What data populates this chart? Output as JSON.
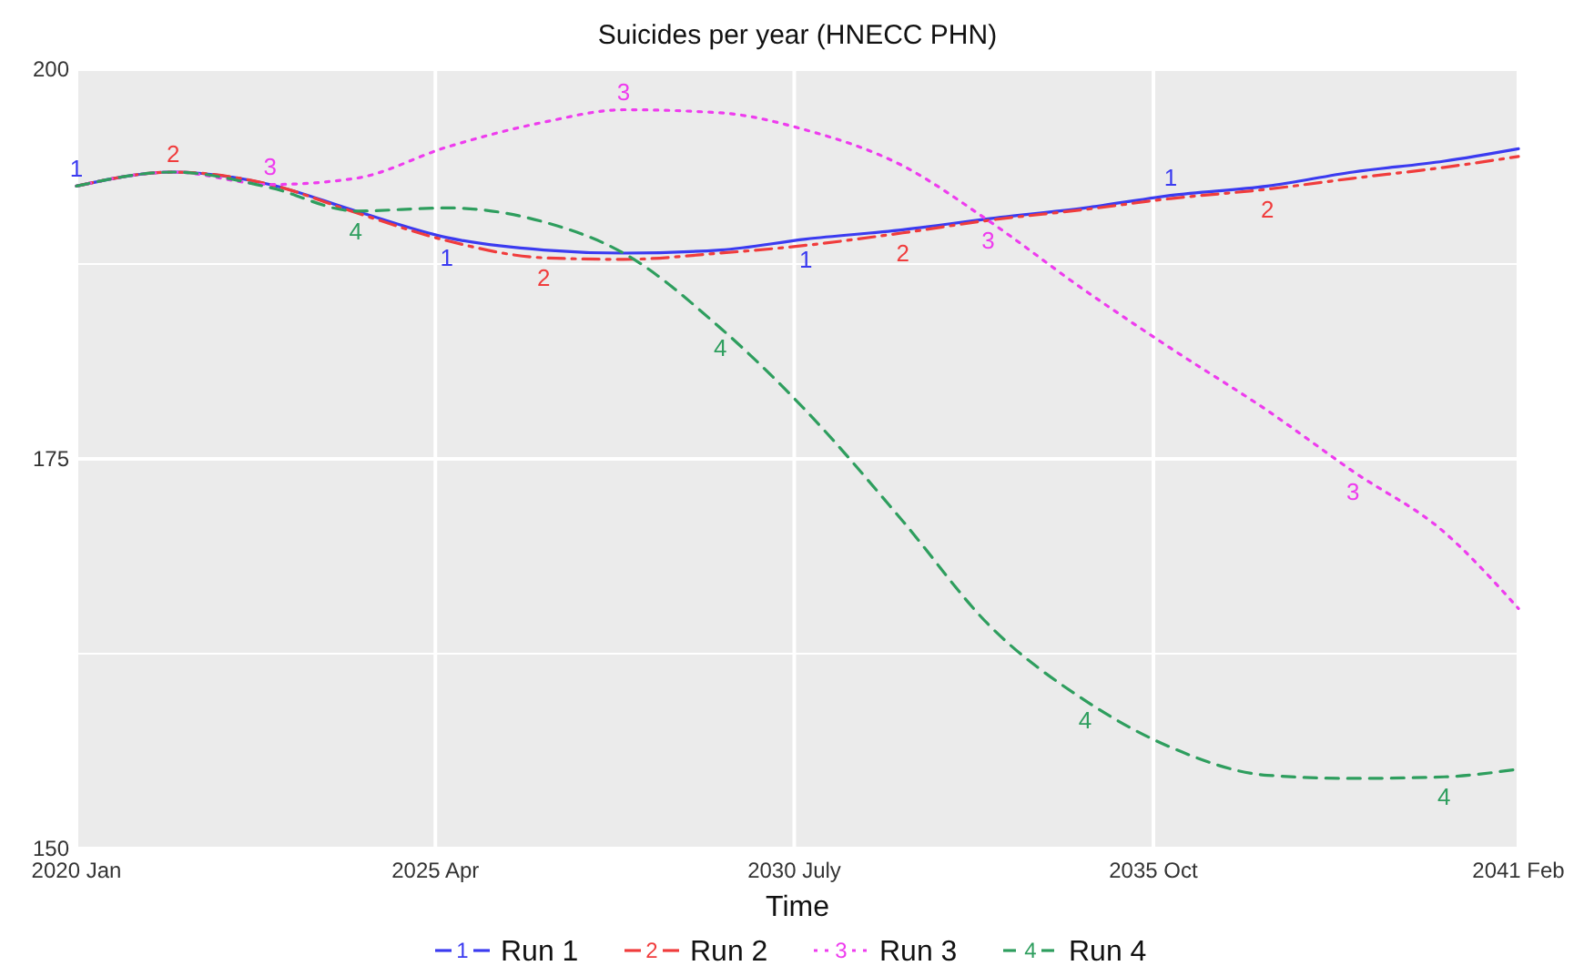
{
  "chart_data": {
    "type": "line",
    "title": "Suicides per year (HNECC PHN)",
    "xlabel": "Time",
    "x": [
      "2020-01",
      "2021-06",
      "2022-11",
      "2024-02",
      "2025-06",
      "2026-11",
      "2028-01",
      "2029-06",
      "2030-09",
      "2032-02",
      "2033-05",
      "2034-10",
      "2036-01",
      "2037-06",
      "2038-09",
      "2040-01",
      "2041-02"
    ],
    "xlim": [
      "2020-01",
      "2041-02"
    ],
    "xticks": [
      {
        "value": "2020-01",
        "label": "2020 Jan"
      },
      {
        "value": "2025-04",
        "label": "2025 Apr"
      },
      {
        "value": "2030-07",
        "label": "2030 July"
      },
      {
        "value": "2035-10",
        "label": "2035 Oct"
      },
      {
        "value": "2041-02",
        "label": "2041 Feb"
      }
    ],
    "ylim": [
      150,
      200
    ],
    "yticks": [
      150,
      {
        "value": 162.5,
        "label": null
      },
      175,
      {
        "value": 187.5,
        "label": null
      },
      200
    ],
    "grid": true,
    "legend": "bottom",
    "series": [
      {
        "name": "Run 1",
        "color": "#3b3bf0",
        "line_style": "solid",
        "values": [
          192.5,
          193.4,
          192.6,
          190.9,
          189.2,
          188.4,
          188.2,
          188.4,
          189.1,
          189.7,
          190.4,
          191.1,
          191.9,
          192.5,
          193.4,
          194.1,
          194.9
        ]
      },
      {
        "name": "Run 2",
        "color": "#f03c3c",
        "line_style": "dashdot",
        "values": [
          192.5,
          193.4,
          192.6,
          190.8,
          189.0,
          187.9,
          187.8,
          188.2,
          188.7,
          189.5,
          190.3,
          191.0,
          191.7,
          192.3,
          193.0,
          193.7,
          194.4
        ]
      },
      {
        "name": "Run 3",
        "color": "#ee3cee",
        "line_style": "dotted",
        "values": [
          192.5,
          193.4,
          192.6,
          193.0,
          195.0,
          196.6,
          197.4,
          197.2,
          196.1,
          193.8,
          190.3,
          185.8,
          182.1,
          178.1,
          174.2,
          170.3,
          165.4
        ]
      },
      {
        "name": "Run 4",
        "color": "#2e9e5e",
        "line_style": "dashed",
        "values": [
          192.5,
          193.4,
          192.4,
          190.9,
          191.1,
          190.2,
          188.2,
          183.4,
          178.1,
          171.0,
          164.4,
          159.5,
          156.5,
          154.7,
          154.5,
          154.6,
          155.1
        ]
      }
    ],
    "annotations": [
      {
        "text": "1",
        "x": "2020-01",
        "y": 192.5
      },
      {
        "text": "1",
        "x": "2025-06",
        "y": 189.2
      },
      {
        "text": "1",
        "x": "2030-09",
        "y": 189.1
      },
      {
        "text": "1",
        "x": "2036-01",
        "y": 191.9
      },
      {
        "text": "2",
        "x": "2021-06",
        "y": 193.4
      },
      {
        "text": "2",
        "x": "2026-11",
        "y": 187.9
      },
      {
        "text": "2",
        "x": "2032-02",
        "y": 189.5
      },
      {
        "text": "2",
        "x": "2037-06",
        "y": 192.3
      },
      {
        "text": "3",
        "x": "2022-11",
        "y": 192.6
      },
      {
        "text": "3",
        "x": "2028-01",
        "y": 197.4
      },
      {
        "text": "3",
        "x": "2033-05",
        "y": 190.3
      },
      {
        "text": "3",
        "x": "2038-09",
        "y": 174.2
      },
      {
        "text": "4",
        "x": "2024-02",
        "y": 190.9
      },
      {
        "text": "4",
        "x": "2029-06",
        "y": 183.4
      },
      {
        "text": "4",
        "x": "2034-10",
        "y": 159.5
      },
      {
        "text": "4",
        "x": "2040-01",
        "y": 154.6
      }
    ]
  }
}
